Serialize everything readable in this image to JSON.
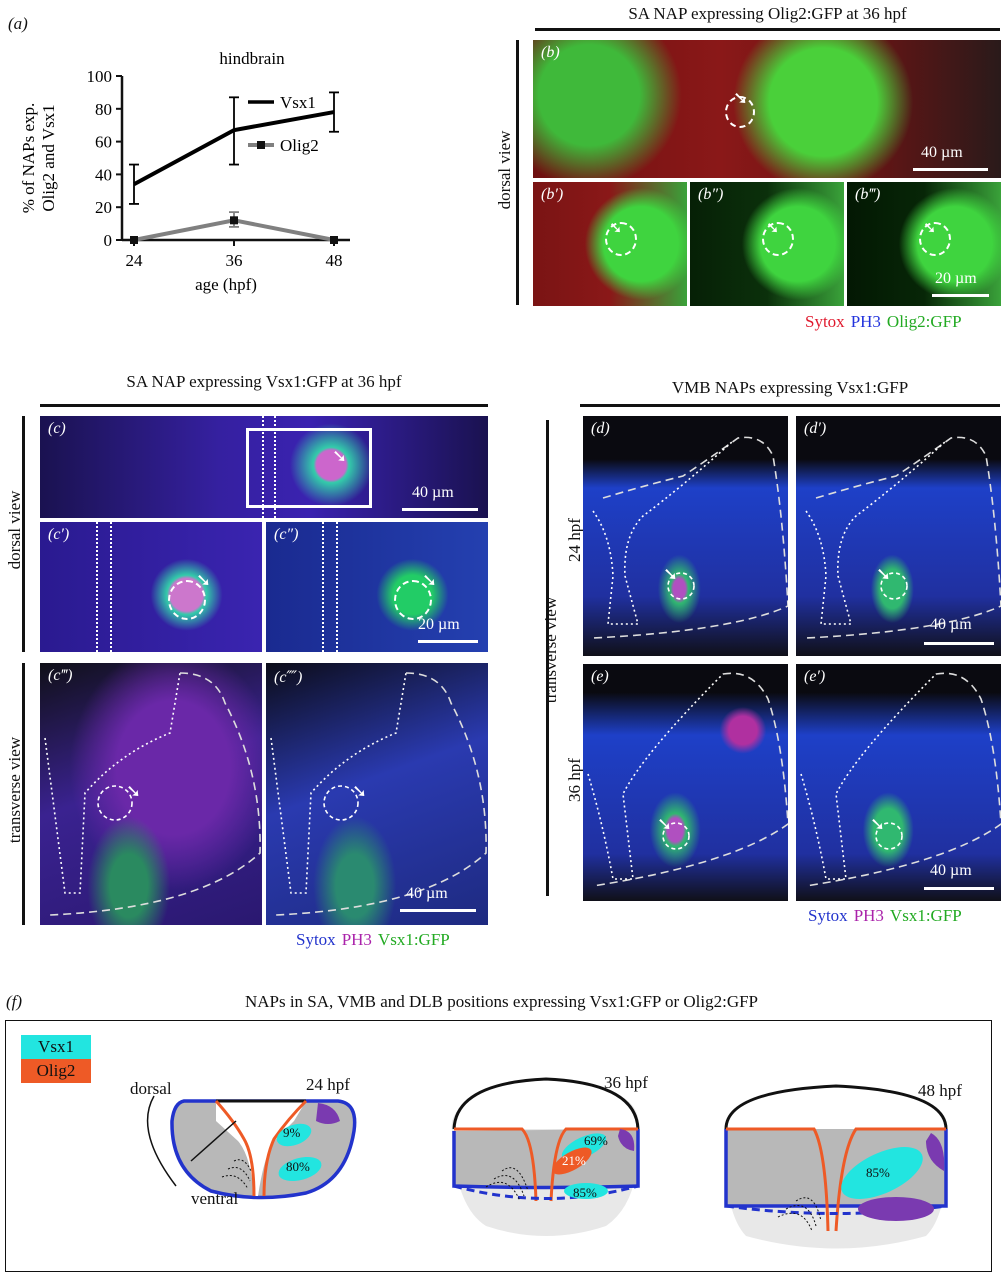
{
  "panel_a": {
    "label": "(a)",
    "title": "hindbrain",
    "ylabel_line1": "% of NAPs exp.",
    "ylabel_line2": "Olig2 and Vsx1",
    "xlabel": "age (hpf)",
    "legend": [
      "Vsx1",
      "Olig2"
    ]
  },
  "chart_data": {
    "type": "line",
    "title": "hindbrain",
    "xlabel": "age (hpf)",
    "ylabel": "% of NAPs exp. Olig2 and Vsx1",
    "x": [
      24,
      36,
      48
    ],
    "ylim": [
      0,
      100
    ],
    "yticks": [
      0,
      20,
      40,
      60,
      80,
      100
    ],
    "series": [
      {
        "name": "Vsx1",
        "values": [
          34,
          67,
          78
        ],
        "err_low": [
          22,
          46,
          66
        ],
        "err_high": [
          46,
          87,
          90
        ],
        "color": "#000000"
      },
      {
        "name": "Olig2",
        "values": [
          0,
          12,
          0
        ],
        "err_low": [
          0,
          8,
          0
        ],
        "err_high": [
          0,
          17,
          0
        ],
        "color": "#808080"
      }
    ]
  },
  "panel_b": {
    "title": "SA NAP expressing Olig2:GFP at 36 hpf",
    "view": "dorsal view",
    "labels": [
      "(b)",
      "(b′)",
      "(b″)",
      "(b‴)"
    ],
    "scale_main": "40 µm",
    "scale_sub": "20 µm",
    "legend": [
      "Sytox",
      "PH3",
      "Olig2:GFP"
    ]
  },
  "panel_c": {
    "title": "SA NAP expressing Vsx1:GFP at 36 hpf",
    "view_dorsal": "dorsal view",
    "view_transverse": "transverse view",
    "labels": [
      "(c)",
      "(c′)",
      "(c″)",
      "(c‴)",
      "(c⁗)"
    ],
    "scale_main": "40 µm",
    "scale_sub": "20 µm",
    "scale_trans": "40 µm",
    "legend": [
      "Sytox",
      "PH3",
      "Vsx1:GFP"
    ]
  },
  "panel_de": {
    "title": "VMB NAPs expressing Vsx1:GFP",
    "view": "transverse view",
    "row1": "24 hpf",
    "row2": "36 hpf",
    "labels": [
      "(d)",
      "(d′)",
      "(e)",
      "(e′)"
    ],
    "scale": "40 µm",
    "legend": [
      "Sytox",
      "PH3",
      "Vsx1:GFP"
    ]
  },
  "panel_f": {
    "label": "(f)",
    "title": "NAPs in SA, VMB and DLB positions expressing Vsx1:GFP or Olig2:GFP",
    "key": [
      "Vsx1",
      "Olig2"
    ],
    "axis_dorsal": "dorsal",
    "axis_ventral": "ventral",
    "stage1": "24 hpf",
    "stage2": "36 hpf",
    "stage3": "48 hpf",
    "p24_a": "9%",
    "p24_b": "80%",
    "p36_a": "69%",
    "p36_b": "21%",
    "p36_c": "85%",
    "p48_a": "85%"
  },
  "colors": {
    "sytox_red": "#e01a2e",
    "ph3_blue": "#2233dd",
    "gfp_green": "#22aa22",
    "sytox_blue": "#2233cc",
    "ph3_magenta": "#aa22aa",
    "vsx1_cyan": "#22e5e0",
    "olig2_orange": "#ee5a26"
  }
}
